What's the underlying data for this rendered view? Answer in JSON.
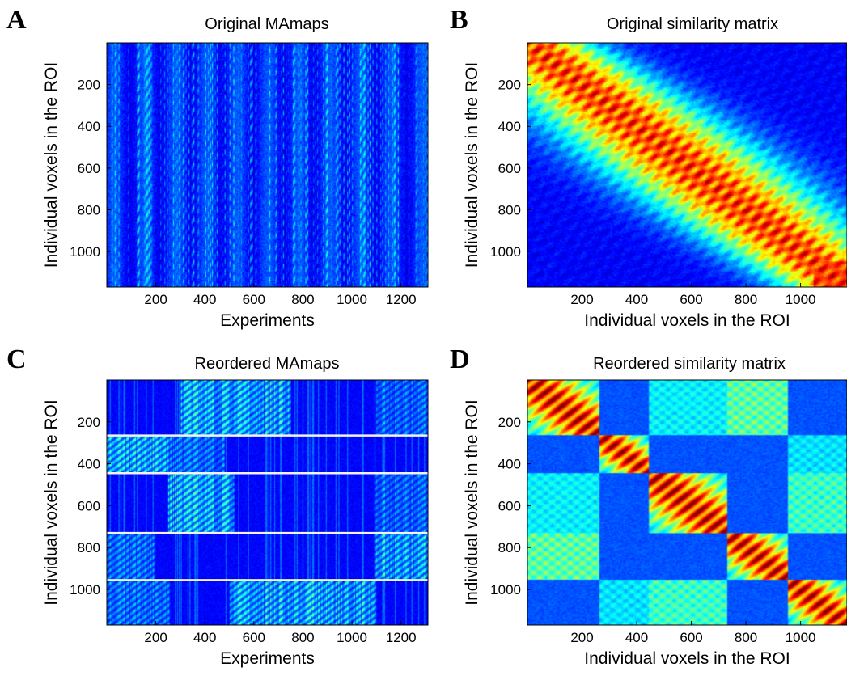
{
  "chart_data": [
    {
      "id": "A",
      "type": "heatmap",
      "letter": "A",
      "title": "Original MAmaps",
      "xlabel": "Experiments",
      "ylabel": "Individual voxels in the ROI",
      "xlim": [
        0,
        1310
      ],
      "ylim": [
        0,
        1170
      ],
      "y_reversed": true,
      "xticks": [
        200,
        400,
        600,
        800,
        1000,
        1200
      ],
      "yticks": [
        200,
        400,
        600,
        800,
        1000
      ],
      "colormap": "jet",
      "pattern": "sparse",
      "separators": []
    },
    {
      "id": "B",
      "type": "heatmap",
      "letter": "B",
      "title": "Original similarity matrix",
      "xlabel": "Individual voxels in the ROI",
      "ylabel": "Individual voxels in the ROI",
      "xlim": [
        0,
        1170
      ],
      "ylim": [
        0,
        1170
      ],
      "y_reversed": true,
      "xticks": [
        200,
        400,
        600,
        800,
        1000
      ],
      "yticks": [
        200,
        400,
        600,
        800,
        1000
      ],
      "colormap": "jet",
      "pattern": "diagonal",
      "separators": []
    },
    {
      "id": "C",
      "type": "heatmap",
      "letter": "C",
      "title": "Reordered MAmaps",
      "xlabel": "Experiments",
      "ylabel": "Individual voxels in the ROI",
      "xlim": [
        0,
        1310
      ],
      "ylim": [
        0,
        1170
      ],
      "y_reversed": true,
      "xticks": [
        200,
        400,
        600,
        800,
        1000,
        1200
      ],
      "yticks": [
        200,
        400,
        600,
        800,
        1000
      ],
      "colormap": "jet",
      "pattern": "clustered",
      "cluster_bounds": [
        0,
        265,
        445,
        730,
        955,
        1170
      ],
      "cluster_experiment_ranges": [
        [
          [
            300,
            750
          ],
          [
            1100,
            1310
          ]
        ],
        [
          [
            0,
            250
          ],
          [
            250,
            480
          ]
        ],
        [
          [
            250,
            520
          ],
          [
            1090,
            1310
          ]
        ],
        [
          [
            1090,
            1310
          ],
          [
            0,
            200
          ]
        ],
        [
          [
            500,
            1100
          ],
          [
            0,
            260
          ]
        ]
      ],
      "separators": [
        265,
        445,
        730,
        955
      ]
    },
    {
      "id": "D",
      "type": "heatmap",
      "letter": "D",
      "title": "Reordered similarity matrix",
      "xlabel": "Individual voxels in the ROI",
      "ylabel": "Individual voxels in the ROI",
      "xlim": [
        0,
        1170
      ],
      "ylim": [
        0,
        1170
      ],
      "y_reversed": true,
      "xticks": [
        200,
        400,
        600,
        800,
        1000
      ],
      "yticks": [
        200,
        400,
        600,
        800,
        1000
      ],
      "colormap": "jet",
      "pattern": "block",
      "cluster_bounds": [
        0,
        265,
        445,
        730,
        955,
        1170
      ],
      "separators": []
    }
  ]
}
